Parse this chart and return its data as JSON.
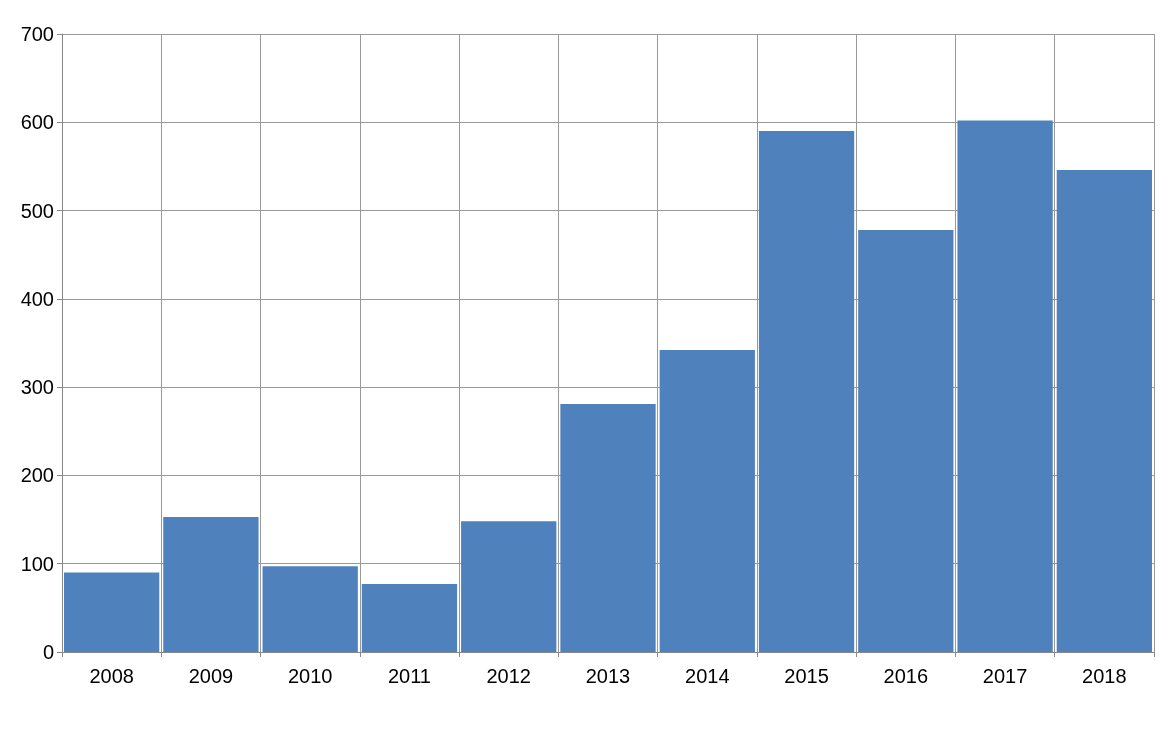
{
  "chart_data": {
    "type": "bar",
    "categories": [
      "2008",
      "2009",
      "2010",
      "2011",
      "2012",
      "2013",
      "2014",
      "2015",
      "2016",
      "2017",
      "2018"
    ],
    "values": [
      90,
      153,
      97,
      77,
      148,
      281,
      342,
      590,
      478,
      602,
      546
    ],
    "color": "#4f81bd",
    "ylim": [
      0,
      700
    ],
    "yticks": [
      0,
      100,
      200,
      300,
      400,
      500,
      600,
      700
    ],
    "grid": true
  }
}
